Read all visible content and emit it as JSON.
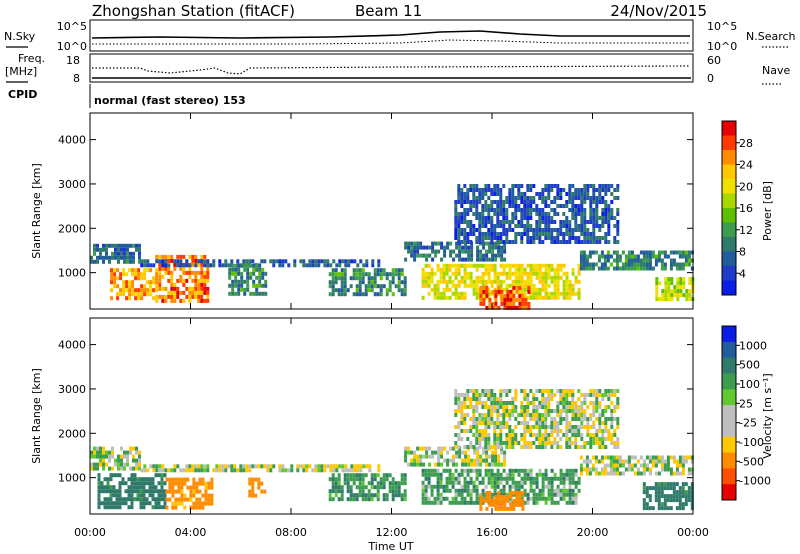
{
  "header": {
    "station": "Zhongshan Station (fitACF)",
    "beam": "Beam 11",
    "date": "24/Nov/2015"
  },
  "status_panel": {
    "nsky_label": "N.Sky",
    "nsky_ticks": [
      "10^5",
      "10^0"
    ],
    "nsearch_label": "N.Search",
    "nsearch_ticks": [
      "10^5",
      "10^0"
    ],
    "freq_label": "Freq.",
    "freq_unit": "[MHz]",
    "freq_ticks": [
      "18",
      "8"
    ],
    "nave_label": "Nave",
    "nave_ticks": [
      "60",
      "0"
    ],
    "cpid_label": "CPID",
    "cpid_value": "normal (fast stereo) 153"
  },
  "x_axis": {
    "label": "Time UT",
    "ticks": [
      "00:00",
      "04:00",
      "08:00",
      "12:00",
      "16:00",
      "20:00",
      "00:00"
    ]
  },
  "panels": {
    "power": {
      "ylabel": "Slant Range [km]",
      "yticks": [
        "4000",
        "3000",
        "2000",
        "1000"
      ],
      "colorbar_label": "Power [dB]",
      "colorbar_ticks": [
        "28",
        "24",
        "20",
        "16",
        "12",
        "8",
        "4"
      ],
      "colorbar_colors": [
        "#e60000",
        "#ff3c00",
        "#ff8c00",
        "#ffc800",
        "#f0e000",
        "#a8d800",
        "#5fc000",
        "#3c9c50",
        "#2f7a6a",
        "#235c9c",
        "#1e3cc8",
        "#0a1ee6"
      ]
    },
    "velocity": {
      "ylabel": "Slant Range [km]",
      "yticks": [
        "4000",
        "3000",
        "2000",
        "1000"
      ],
      "colorbar_label": "Velocity [m s⁻¹]",
      "colorbar_ticks": [
        "1000",
        "500",
        "100",
        "25",
        "-25",
        "-100",
        "-500",
        "-1000"
      ],
      "colorbar_colors": [
        "#0a1ee6",
        "#235c9c",
        "#2f7a6a",
        "#3c9c50",
        "#60c830",
        "#bebebe",
        "#bebebe",
        "#ffc800",
        "#ff8c00",
        "#ff5000",
        "#e60000"
      ]
    }
  },
  "chart_data": [
    {
      "type": "heatmap",
      "title": "Power",
      "xlabel": "Time UT",
      "ylabel": "Slant Range [km]",
      "xlim": [
        0,
        24
      ],
      "ylim": [
        180,
        4600
      ],
      "clim": [
        0,
        32
      ],
      "colorbar_label": "Power [dB]",
      "patches": [
        {
          "t": [
            0.0,
            2.0
          ],
          "r": [
            1200,
            1650
          ],
          "power": 8
        },
        {
          "t": [
            0.8,
            2.6
          ],
          "r": [
            400,
            1100
          ],
          "power": 24
        },
        {
          "t": [
            2.6,
            4.7
          ],
          "r": [
            400,
            1400
          ],
          "power": 26
        },
        {
          "t": [
            2.0,
            11.5
          ],
          "r": [
            1150,
            1300
          ],
          "power": 6
        },
        {
          "t": [
            5.5,
            7.0
          ],
          "r": [
            500,
            1200
          ],
          "power": 10
        },
        {
          "t": [
            9.5,
            12.5
          ],
          "r": [
            500,
            1100
          ],
          "power": 10
        },
        {
          "t": [
            12.5,
            16.5
          ],
          "r": [
            1300,
            1700
          ],
          "power": 8
        },
        {
          "t": [
            13.2,
            19.5
          ],
          "r": [
            400,
            1200
          ],
          "power": 20
        },
        {
          "t": [
            15.5,
            17.5
          ],
          "r": [
            200,
            700
          ],
          "power": 28
        },
        {
          "t": [
            14.5,
            21.0
          ],
          "r": [
            1700,
            3000
          ],
          "power": 6
        },
        {
          "t": [
            19.5,
            24.0
          ],
          "r": [
            1100,
            1500
          ],
          "power": 10
        },
        {
          "t": [
            22.5,
            24.0
          ],
          "r": [
            400,
            900
          ],
          "power": 18
        }
      ]
    },
    {
      "type": "heatmap",
      "title": "Velocity",
      "xlabel": "Time UT",
      "ylabel": "Slant Range [km]",
      "xlim": [
        0,
        24
      ],
      "ylim": [
        180,
        4600
      ],
      "clim": [
        -1000,
        1000
      ],
      "colorbar_label": "Velocity [m s⁻¹]",
      "patches": [
        {
          "t": [
            0.0,
            2.0
          ],
          "r": [
            1200,
            1700
          ],
          "velocity": 0
        },
        {
          "t": [
            0.3,
            3.0
          ],
          "r": [
            350,
            1100
          ],
          "velocity": 150
        },
        {
          "t": [
            3.0,
            4.8
          ],
          "r": [
            300,
            1000
          ],
          "velocity": -150
        },
        {
          "t": [
            2.0,
            11.5
          ],
          "r": [
            1150,
            1300
          ],
          "velocity": 0
        },
        {
          "t": [
            6.3,
            7.0
          ],
          "r": [
            600,
            1000
          ],
          "velocity": -200
        },
        {
          "t": [
            9.5,
            12.5
          ],
          "r": [
            500,
            1100
          ],
          "velocity": 80
        },
        {
          "t": [
            12.5,
            16.5
          ],
          "r": [
            1300,
            1700
          ],
          "velocity": 0
        },
        {
          "t": [
            13.2,
            19.5
          ],
          "r": [
            400,
            1200
          ],
          "velocity": 60
        },
        {
          "t": [
            15.5,
            17.2
          ],
          "r": [
            250,
            700
          ],
          "velocity": -200
        },
        {
          "t": [
            14.5,
            21.0
          ],
          "r": [
            1700,
            3000
          ],
          "velocity": 0
        },
        {
          "t": [
            19.5,
            24.0
          ],
          "r": [
            1100,
            1500
          ],
          "velocity": 0
        },
        {
          "t": [
            22.0,
            24.0
          ],
          "r": [
            350,
            900
          ],
          "velocity": 150
        }
      ]
    }
  ]
}
